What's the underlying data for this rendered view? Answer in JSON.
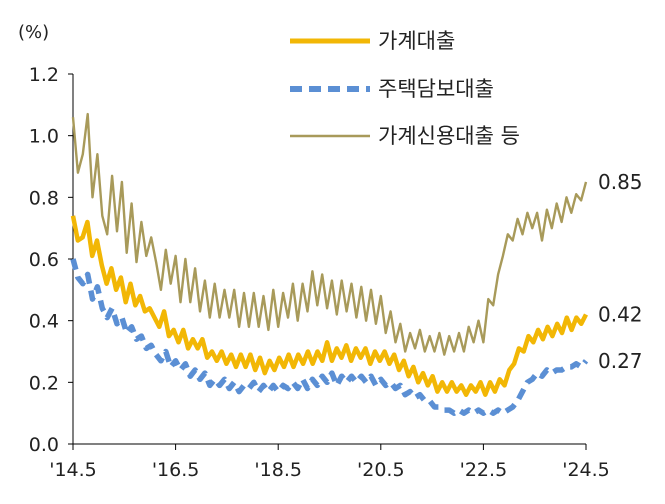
{
  "chart_data": {
    "type": "line",
    "unit_label": "(%)",
    "ylim": [
      0,
      1.2
    ],
    "y_ticks": [
      "0.0",
      "0.2",
      "0.4",
      "0.6",
      "0.8",
      "1.0",
      "1.2"
    ],
    "x_ticks": [
      "'14.5",
      "'16.5",
      "'18.5",
      "'20.5",
      "'22.5",
      "'24.5"
    ],
    "grid": false,
    "legend_position": "top-right",
    "series": [
      {
        "name": "가계대출",
        "color": "#F2B705",
        "style": "solid",
        "end_label": "0.42",
        "values": [
          0.74,
          0.66,
          0.67,
          0.72,
          0.61,
          0.66,
          0.58,
          0.52,
          0.57,
          0.5,
          0.54,
          0.46,
          0.52,
          0.45,
          0.48,
          0.43,
          0.44,
          0.41,
          0.38,
          0.43,
          0.35,
          0.37,
          0.33,
          0.37,
          0.31,
          0.34,
          0.31,
          0.34,
          0.28,
          0.3,
          0.27,
          0.3,
          0.26,
          0.29,
          0.25,
          0.29,
          0.25,
          0.29,
          0.24,
          0.28,
          0.23,
          0.27,
          0.24,
          0.28,
          0.25,
          0.29,
          0.25,
          0.29,
          0.26,
          0.3,
          0.26,
          0.3,
          0.27,
          0.33,
          0.27,
          0.31,
          0.28,
          0.32,
          0.27,
          0.31,
          0.28,
          0.31,
          0.26,
          0.3,
          0.27,
          0.3,
          0.26,
          0.29,
          0.24,
          0.27,
          0.22,
          0.25,
          0.2,
          0.23,
          0.19,
          0.22,
          0.17,
          0.2,
          0.17,
          0.2,
          0.17,
          0.19,
          0.16,
          0.19,
          0.17,
          0.2,
          0.16,
          0.2,
          0.17,
          0.21,
          0.19,
          0.24,
          0.26,
          0.31,
          0.3,
          0.35,
          0.33,
          0.37,
          0.34,
          0.38,
          0.35,
          0.39,
          0.36,
          0.41,
          0.37,
          0.41,
          0.39,
          0.42
        ]
      },
      {
        "name": "주택담보대출",
        "color": "#5B8FD4",
        "style": "dashed",
        "end_label": "0.27",
        "values": [
          0.6,
          0.54,
          0.52,
          0.55,
          0.47,
          0.51,
          0.44,
          0.41,
          0.44,
          0.39,
          0.41,
          0.36,
          0.38,
          0.34,
          0.35,
          0.31,
          0.32,
          0.29,
          0.27,
          0.3,
          0.25,
          0.27,
          0.24,
          0.26,
          0.22,
          0.24,
          0.21,
          0.23,
          0.19,
          0.21,
          0.19,
          0.21,
          0.18,
          0.2,
          0.17,
          0.19,
          0.18,
          0.2,
          0.17,
          0.19,
          0.17,
          0.19,
          0.17,
          0.19,
          0.18,
          0.2,
          0.18,
          0.21,
          0.18,
          0.21,
          0.19,
          0.22,
          0.2,
          0.23,
          0.19,
          0.22,
          0.2,
          0.22,
          0.2,
          0.22,
          0.2,
          0.22,
          0.19,
          0.21,
          0.19,
          0.2,
          0.18,
          0.19,
          0.16,
          0.17,
          0.15,
          0.16,
          0.14,
          0.14,
          0.12,
          0.12,
          0.11,
          0.11,
          0.1,
          0.11,
          0.1,
          0.11,
          0.1,
          0.11,
          0.1,
          0.11,
          0.1,
          0.11,
          0.1,
          0.11,
          0.12,
          0.14,
          0.17,
          0.2,
          0.21,
          0.23,
          0.22,
          0.24,
          0.23,
          0.24,
          0.24,
          0.25,
          0.25,
          0.26,
          0.25,
          0.27
        ]
      },
      {
        "name": "가계신용대출 등",
        "color": "#A89A5A",
        "style": "solid-thin",
        "end_label": "0.85",
        "values": [
          1.06,
          0.88,
          0.94,
          1.07,
          0.8,
          0.94,
          0.74,
          0.68,
          0.87,
          0.69,
          0.85,
          0.62,
          0.78,
          0.59,
          0.72,
          0.61,
          0.67,
          0.59,
          0.5,
          0.63,
          0.52,
          0.61,
          0.46,
          0.6,
          0.46,
          0.57,
          0.43,
          0.53,
          0.41,
          0.52,
          0.41,
          0.5,
          0.41,
          0.5,
          0.38,
          0.49,
          0.38,
          0.49,
          0.38,
          0.48,
          0.37,
          0.5,
          0.38,
          0.49,
          0.41,
          0.52,
          0.4,
          0.52,
          0.43,
          0.56,
          0.45,
          0.55,
          0.44,
          0.53,
          0.42,
          0.53,
          0.43,
          0.52,
          0.41,
          0.51,
          0.4,
          0.5,
          0.39,
          0.48,
          0.36,
          0.43,
          0.33,
          0.39,
          0.3,
          0.36,
          0.31,
          0.37,
          0.3,
          0.35,
          0.3,
          0.36,
          0.29,
          0.35,
          0.3,
          0.36,
          0.3,
          0.38,
          0.33,
          0.4,
          0.33,
          0.47,
          0.45,
          0.55,
          0.61,
          0.68,
          0.66,
          0.73,
          0.68,
          0.75,
          0.7,
          0.75,
          0.66,
          0.76,
          0.7,
          0.78,
          0.72,
          0.8,
          0.75,
          0.81,
          0.79,
          0.85
        ]
      }
    ]
  }
}
